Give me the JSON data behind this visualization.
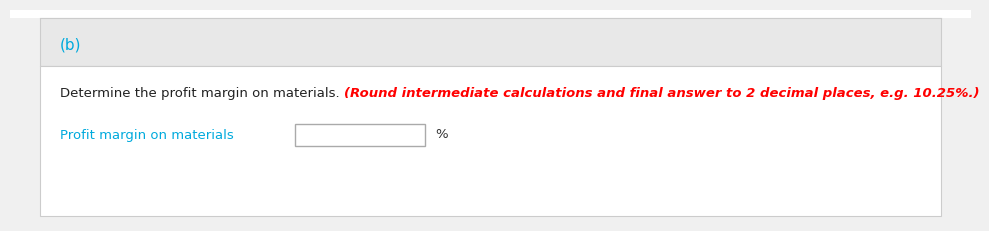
{
  "part_label": "(b)",
  "part_label_color": "#00aadd",
  "instruction_text_black": "Determine the profit margin on materials. ",
  "instruction_text_red": "(Round intermediate calculations and final answer to 2 decimal places, e.g. 10.25%.)",
  "instruction_text_black_color": "#222222",
  "instruction_text_red_color": "#ff0000",
  "field_label": "Profit margin on materials",
  "field_label_color": "#00aadd",
  "percent_symbol": "%",
  "percent_color": "#333333",
  "outer_bg": "#f0f0f0",
  "inner_bg": "#ffffff",
  "header_bg": "#e8e8e8",
  "box_border_color": "#cccccc",
  "top_border_color": "#cccccc",
  "font_size_part": 11,
  "font_size_instruction": 9.5,
  "font_size_field": 9.5,
  "font_size_percent": 9.5
}
